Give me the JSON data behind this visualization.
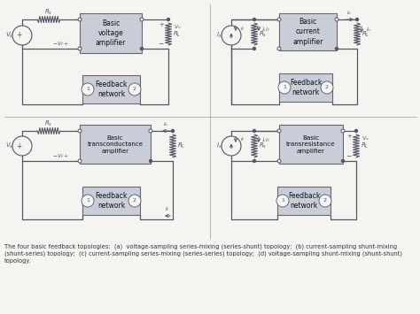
{
  "fig_width": 4.74,
  "fig_height": 3.55,
  "dpi": 100,
  "bg_color": "#f5f4f0",
  "box_color": "#c8cdd8",
  "box_edge_color": "#666677",
  "line_color": "#555566",
  "caption_text": "The four basic feedback topologies:  (a)  voltage-sampling series-mixing (series-shunt) topology;  (b) current-sampling shunt-mixing\n(shunt-series) topology;  (c) current-sampling series-mixing (series-series) topology;  (d) voltage-sampling shunt-mixing (shunt-shunt)\ntopology.",
  "caption_fontsize": 4.8,
  "panels": [
    {
      "label_amp": "Basic\nvoltage\namplifier",
      "label_fb": "Feedback\nnetwork",
      "type": "voltage_series"
    },
    {
      "label_amp": "Basic\ncurrent\namplifier",
      "label_fb": "Feedback\nnetwork",
      "type": "current_shunt"
    },
    {
      "label_amp": "Basic\ntransconductance\namplifier",
      "label_fb": "Feedback\nnetwork",
      "type": "transconductance"
    },
    {
      "label_amp": "Basic\ntransresistance\namplifier",
      "label_fb": "Feedback\nnetwork",
      "type": "transresistance"
    }
  ]
}
